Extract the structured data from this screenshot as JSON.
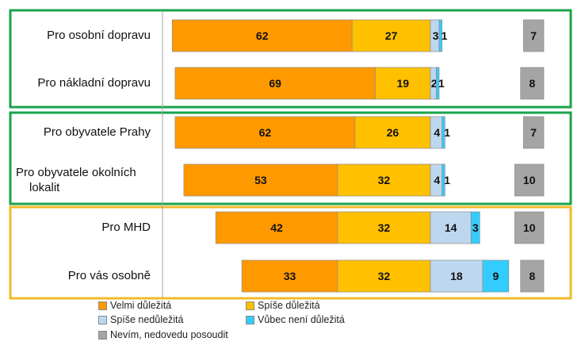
{
  "chart_data": {
    "type": "bar",
    "orientation": "horizontal",
    "stacked": "diverging",
    "categories": [
      "Pro osobní dopravu",
      "Pro nákladní dopravu",
      "Pro obyvatele Prahy",
      "Pro obyvatele okolních lokalit",
      "Pro MHD",
      "Pro vás osobně"
    ],
    "series": [
      {
        "name": "Velmi důležitá",
        "color": "#ff9900",
        "values": [
          62,
          69,
          62,
          53,
          42,
          33
        ]
      },
      {
        "name": "Spíše důležitá",
        "color": "#ffc000",
        "values": [
          27,
          19,
          26,
          32,
          32,
          32
        ]
      },
      {
        "name": "Spíše nedůležitá",
        "color": "#bdd7ee",
        "values": [
          3,
          2,
          4,
          4,
          14,
          18
        ]
      },
      {
        "name": "Vůbec není důležitá",
        "color": "#33ccff",
        "values": [
          1,
          1,
          1,
          1,
          3,
          9
        ]
      },
      {
        "name": "Nevím, nedovedu posoudit",
        "color": "#a5a5a5",
        "values": [
          7,
          8,
          7,
          10,
          10,
          8
        ]
      }
    ],
    "groups": [
      {
        "categories": [
          0,
          1
        ],
        "color": "#1aa34a"
      },
      {
        "categories": [
          2,
          3
        ],
        "color": "#1aa34a"
      },
      {
        "categories": [
          4,
          5
        ],
        "color": "#f2b92a"
      }
    ],
    "legend_position": "bottom",
    "grid": false
  }
}
